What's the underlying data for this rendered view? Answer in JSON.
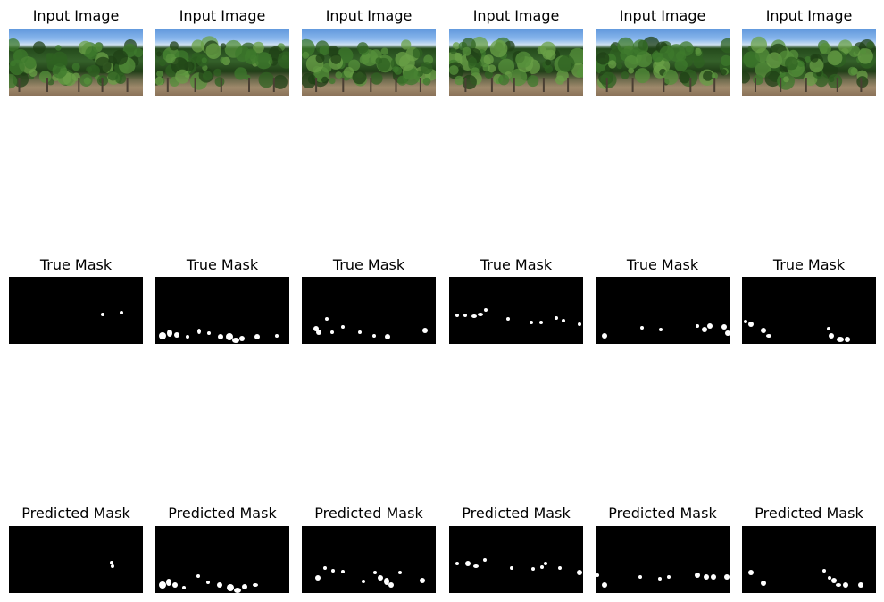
{
  "rows": [
    {
      "title": "Input Image",
      "kind": "photo"
    },
    {
      "title": "True Mask",
      "kind": "mask"
    },
    {
      "title": "Predicted Mask",
      "kind": "mask"
    }
  ],
  "columns": 6
}
